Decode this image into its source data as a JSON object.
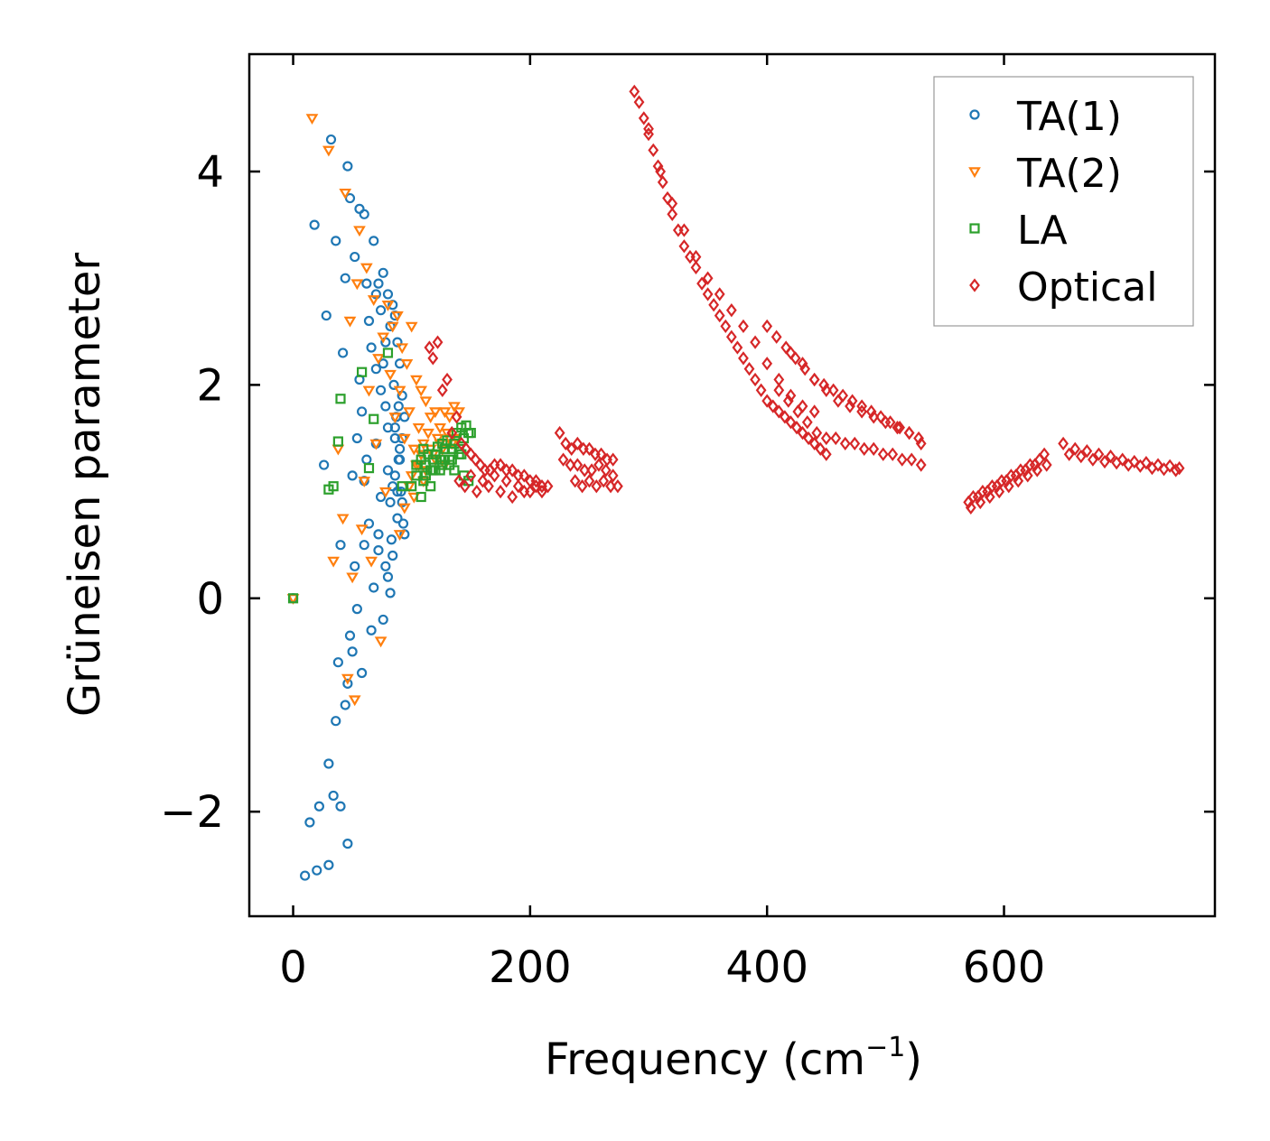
{
  "chart_data": {
    "type": "scatter",
    "title": "",
    "xlabel": "Frequency (cm",
    "xlabel_sup": "−1",
    "xlabel_close": ")",
    "ylabel": "Grüneisen parameter",
    "xlim": [
      -37,
      778
    ],
    "ylim": [
      -2.98,
      5.1
    ],
    "xticks": [
      0,
      200,
      400,
      600
    ],
    "xtick_labels": [
      "0",
      "200",
      "400",
      "600"
    ],
    "yticks": [
      -2,
      0,
      2,
      4
    ],
    "ytick_labels": [
      "−2",
      "0",
      "2",
      "4"
    ],
    "grid": false,
    "legend_position": "top-right",
    "series": [
      {
        "name": "TA(1)",
        "marker": "circle",
        "color": "#1f77b4",
        "x": [
          0,
          10,
          14,
          18,
          20,
          22,
          26,
          28,
          30,
          30,
          32,
          34,
          36,
          36,
          38,
          40,
          40,
          42,
          44,
          44,
          46,
          46,
          46,
          48,
          48,
          50,
          50,
          52,
          52,
          54,
          54,
          56,
          56,
          58,
          58,
          60,
          60,
          60,
          62,
          62,
          64,
          64,
          66,
          66,
          68,
          68,
          70,
          70,
          72,
          72,
          74,
          74,
          76,
          76,
          78,
          78,
          80,
          80,
          82,
          82,
          84,
          84,
          86,
          86,
          88,
          88,
          90,
          90,
          92,
          92,
          94,
          94,
          78,
          80,
          82,
          84,
          86,
          88,
          90,
          76,
          74,
          72,
          70,
          85,
          87,
          89,
          91,
          93,
          80,
          83,
          86,
          89,
          92
        ],
        "y": [
          0,
          -2.6,
          -2.1,
          3.5,
          -2.55,
          -1.95,
          1.25,
          2.65,
          -1.55,
          -2.5,
          4.3,
          -1.85,
          3.35,
          -1.15,
          -0.6,
          0.5,
          -1.95,
          2.3,
          3.0,
          -1.0,
          4.05,
          -0.8,
          -2.3,
          3.75,
          -0.35,
          1.15,
          -0.5,
          3.2,
          0.3,
          1.5,
          -0.1,
          3.65,
          2.05,
          1.75,
          -0.7,
          3.6,
          1.1,
          0.5,
          2.95,
          1.3,
          2.6,
          0.7,
          2.35,
          -0.3,
          3.35,
          0.1,
          2.85,
          1.45,
          2.95,
          0.6,
          2.7,
          0.95,
          3.05,
          2.2,
          2.4,
          0.3,
          2.85,
          1.6,
          2.55,
          0.05,
          2.75,
          1.05,
          2.65,
          1.5,
          2.4,
          0.75,
          2.2,
          1.3,
          1.9,
          0.9,
          1.7,
          0.6,
          1.8,
          1.2,
          0.9,
          0.4,
          1.6,
          1.0,
          1.4,
          -0.2,
          1.95,
          0.45,
          2.15,
          2.0,
          1.7,
          1.3,
          1.0,
          0.7,
          0.2,
          0.55,
          1.15,
          1.8,
          1.5
        ]
      },
      {
        "name": "TA(2)",
        "marker": "triangle-down",
        "color": "#ff7f0e",
        "x": [
          0,
          16,
          30,
          34,
          38,
          42,
          44,
          46,
          48,
          50,
          52,
          54,
          56,
          58,
          60,
          62,
          64,
          66,
          68,
          70,
          72,
          74,
          76,
          78,
          80,
          82,
          84,
          86,
          88,
          90,
          92,
          94,
          96,
          98,
          100,
          102,
          104,
          106,
          108,
          110,
          112,
          114,
          116,
          118,
          120,
          122,
          124,
          126,
          128,
          130,
          132,
          134,
          136,
          138,
          140,
          100,
          104,
          108,
          112,
          116,
          120,
          124,
          128,
          132,
          90,
          94,
          98,
          102,
          106,
          110
        ],
        "y": [
          0,
          4.5,
          4.2,
          0.35,
          1.4,
          0.75,
          3.8,
          -0.75,
          2.6,
          0.2,
          -0.95,
          2.95,
          3.45,
          0.65,
          1.1,
          3.1,
          1.95,
          0.35,
          2.8,
          1.45,
          2.25,
          -0.4,
          2.45,
          1.0,
          2.75,
          2.1,
          2.55,
          1.7,
          2.65,
          1.95,
          2.35,
          1.5,
          2.2,
          1.75,
          2.55,
          1.4,
          2.05,
          1.6,
          1.95,
          1.45,
          1.85,
          1.55,
          1.7,
          1.35,
          1.75,
          1.5,
          1.6,
          1.4,
          1.75,
          1.55,
          1.7,
          1.45,
          1.8,
          1.5,
          1.75,
          1.15,
          1.25,
          1.35,
          1.2,
          1.4,
          1.3,
          1.45,
          1.25,
          1.5,
          0.6,
          0.85,
          1.05,
          0.95,
          1.25,
          1.1
        ]
      },
      {
        "name": "LA",
        "marker": "square",
        "color": "#2ca02c",
        "x": [
          0,
          30,
          34,
          38,
          40,
          58,
          64,
          68,
          80,
          92,
          100,
          104,
          108,
          110,
          112,
          114,
          116,
          118,
          120,
          122,
          124,
          126,
          128,
          130,
          132,
          134,
          136,
          138,
          140,
          142,
          144,
          146,
          148,
          108,
          112,
          116,
          120,
          124,
          128,
          132,
          136,
          140,
          144,
          148,
          104,
          110,
          118,
          126,
          134,
          142,
          150
        ],
        "y": [
          0,
          1.02,
          1.05,
          1.47,
          1.87,
          2.12,
          1.22,
          1.68,
          2.3,
          1.05,
          1.05,
          1.25,
          0.95,
          1.4,
          1.15,
          1.35,
          1.05,
          1.3,
          1.2,
          1.42,
          1.2,
          1.45,
          1.3,
          1.48,
          1.25,
          1.4,
          1.2,
          1.55,
          1.4,
          1.6,
          1.5,
          1.62,
          1.55,
          1.3,
          1.25,
          1.2,
          1.35,
          1.3,
          1.4,
          1.3,
          1.45,
          1.35,
          1.15,
          1.1,
          1.15,
          1.1,
          1.2,
          1.25,
          1.3,
          1.35,
          1.55
        ]
      },
      {
        "name": "Optical",
        "marker": "diamond",
        "color": "#d62728",
        "x": [
          115,
          118,
          122,
          126,
          130,
          134,
          138,
          142,
          146,
          150,
          154,
          158,
          162,
          166,
          170,
          175,
          180,
          185,
          190,
          195,
          200,
          205,
          210,
          215,
          140,
          145,
          150,
          155,
          160,
          165,
          170,
          175,
          180,
          185,
          190,
          195,
          200,
          205,
          210,
          225,
          230,
          235,
          240,
          245,
          250,
          255,
          260,
          265,
          270,
          228,
          234,
          240,
          246,
          252,
          258,
          264,
          270,
          238,
          244,
          250,
          256,
          262,
          268,
          274,
          288,
          292,
          296,
          300,
          304,
          308,
          312,
          316,
          320,
          325,
          330,
          335,
          340,
          345,
          350,
          355,
          360,
          365,
          370,
          375,
          380,
          385,
          390,
          395,
          400,
          405,
          410,
          415,
          420,
          425,
          430,
          435,
          440,
          445,
          450,
          300,
          310,
          320,
          330,
          340,
          350,
          360,
          370,
          380,
          390,
          400,
          410,
          420,
          430,
          440,
          400,
          408,
          416,
          424,
          432,
          440,
          448,
          456,
          464,
          472,
          480,
          488,
          496,
          504,
          512,
          520,
          528,
          420,
          430,
          440,
          450,
          460,
          470,
          480,
          490,
          500,
          510,
          520,
          530,
          410,
          418,
          426,
          434,
          442,
          450,
          458,
          466,
          474,
          482,
          490,
          498,
          506,
          514,
          522,
          530,
          570,
          578,
          586,
          594,
          602,
          610,
          618,
          626,
          634,
          572,
          580,
          588,
          596,
          604,
          612,
          620,
          628,
          636,
          574,
          582,
          590,
          598,
          606,
          614,
          622,
          630,
          650,
          660,
          670,
          680,
          690,
          700,
          710,
          720,
          730,
          740,
          748,
          655,
          665,
          675,
          685,
          695,
          705,
          715,
          725,
          735,
          745
        ],
        "y": [
          2.35,
          2.25,
          2.4,
          1.95,
          2.05,
          1.55,
          1.7,
          1.45,
          1.4,
          1.35,
          1.3,
          1.25,
          1.2,
          1.2,
          1.25,
          1.25,
          1.2,
          1.2,
          1.15,
          1.15,
          1.1,
          1.1,
          1.05,
          1.05,
          1.1,
          1.05,
          1.15,
          1.0,
          1.1,
          1.05,
          1.15,
          1.0,
          1.1,
          0.95,
          1.05,
          1.0,
          1.0,
          1.05,
          1.0,
          1.55,
          1.45,
          1.4,
          1.45,
          1.4,
          1.4,
          1.35,
          1.35,
          1.3,
          1.3,
          1.3,
          1.25,
          1.25,
          1.2,
          1.2,
          1.25,
          1.2,
          1.15,
          1.1,
          1.05,
          1.1,
          1.05,
          1.1,
          1.05,
          1.05,
          4.75,
          4.65,
          4.5,
          4.35,
          4.2,
          4.05,
          3.9,
          3.75,
          3.6,
          3.45,
          3.3,
          3.2,
          3.1,
          2.95,
          2.85,
          2.75,
          2.65,
          2.55,
          2.45,
          2.35,
          2.25,
          2.15,
          2.05,
          1.95,
          1.85,
          1.8,
          1.75,
          1.7,
          1.65,
          1.6,
          1.55,
          1.5,
          1.45,
          1.4,
          1.35,
          4.4,
          4.0,
          3.7,
          3.45,
          3.2,
          3.0,
          2.85,
          2.7,
          2.55,
          2.4,
          2.2,
          2.05,
          1.9,
          1.8,
          1.75,
          2.55,
          2.45,
          2.35,
          2.25,
          2.15,
          2.05,
          2.0,
          1.95,
          1.9,
          1.85,
          1.8,
          1.75,
          1.7,
          1.65,
          1.6,
          1.55,
          1.5,
          2.3,
          2.2,
          2.05,
          1.95,
          1.85,
          1.8,
          1.75,
          1.7,
          1.65,
          1.6,
          1.55,
          1.45,
          1.95,
          1.85,
          1.75,
          1.65,
          1.55,
          1.5,
          1.5,
          1.45,
          1.45,
          1.4,
          1.4,
          1.35,
          1.35,
          1.3,
          1.3,
          1.25,
          0.9,
          0.95,
          1.0,
          1.05,
          1.1,
          1.15,
          1.2,
          1.25,
          1.35,
          0.85,
          0.9,
          0.95,
          1.0,
          1.05,
          1.1,
          1.15,
          1.2,
          1.25,
          0.95,
          1.0,
          1.05,
          1.1,
          1.15,
          1.2,
          1.25,
          1.3,
          1.45,
          1.4,
          1.38,
          1.35,
          1.33,
          1.3,
          1.28,
          1.27,
          1.25,
          1.24,
          1.22,
          1.35,
          1.33,
          1.3,
          1.28,
          1.27,
          1.25,
          1.24,
          1.22,
          1.21,
          1.2
        ]
      }
    ]
  }
}
